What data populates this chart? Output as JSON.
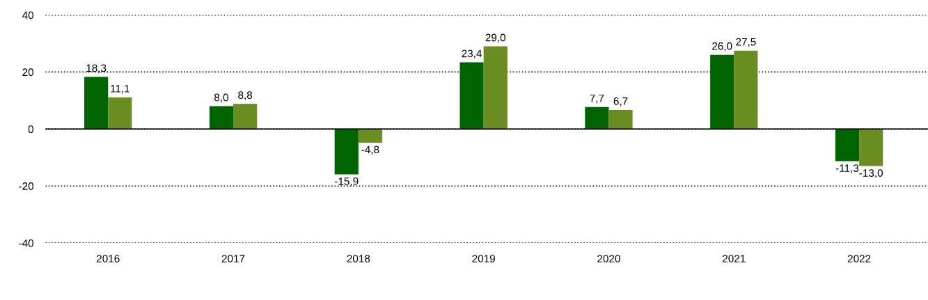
{
  "chart_data": {
    "type": "bar",
    "categories": [
      "2016",
      "2017",
      "2018",
      "2019",
      "2020",
      "2021",
      "2022"
    ],
    "series": [
      {
        "color": "#006400",
        "values": [
          18.3,
          8.0,
          -15.9,
          23.4,
          7.7,
          26.0,
          -11.3
        ],
        "value_labels": [
          "18,3",
          "8,0",
          "-15,9",
          "23,4",
          "7,7",
          "26,0",
          "-11,3"
        ]
      },
      {
        "color": "#6b8e23",
        "values": [
          11.1,
          8.8,
          -4.8,
          29.0,
          6.7,
          27.5,
          -13.0
        ],
        "value_labels": [
          "11,1",
          "8,8",
          "-4,8",
          "29,0",
          "6,7",
          "27,5",
          "-13,0"
        ]
      }
    ],
    "ylim": [
      -40,
      40
    ],
    "yticks": [
      -40,
      -20,
      0,
      20,
      40
    ],
    "grid": "y",
    "line_style": "dotted",
    "ref_lines": [
      {
        "axis": "y",
        "value": 0,
        "color": "#000000",
        "line_style": "solid"
      }
    ],
    "legend": false
  }
}
